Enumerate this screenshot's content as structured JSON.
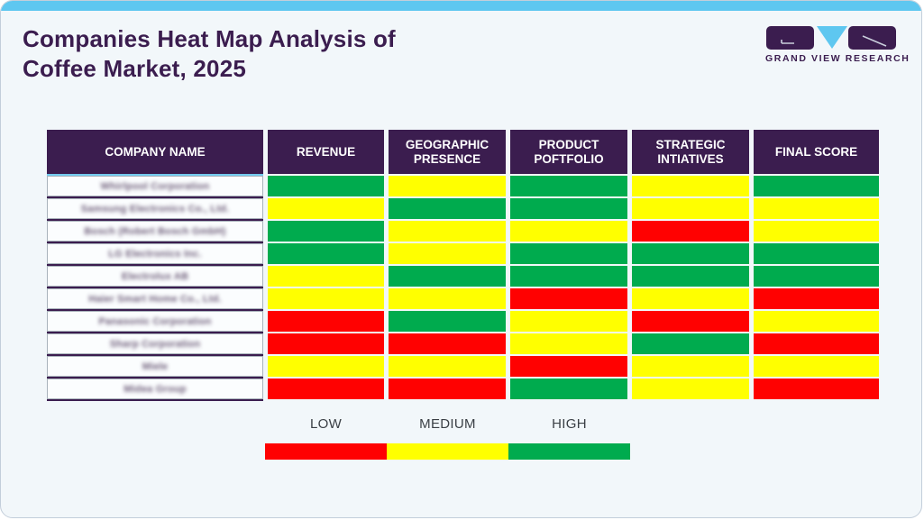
{
  "page": {
    "title_line1": "Companies Heat Map Analysis of",
    "title_line2": "Coffee Market, 2025"
  },
  "logo": {
    "text": "GRAND VIEW RESEARCH",
    "mark": "gvr-monogram-icon"
  },
  "colors": {
    "low": "#FF0101",
    "medium": "#FFFF00",
    "high": "#00AB4E",
    "header_purple": "#3B1D4F",
    "accent_blue": "#5EC7F0",
    "title_purple": "#3B1D4F"
  },
  "chart_data": {
    "type": "heatmap",
    "title": "Companies Heat Map Analysis of Coffee Market, 2025",
    "columns": [
      "COMPANY NAME",
      "REVENUE",
      "GEOGRAPHIC PRESENCE",
      "PRODUCT POFTFOLIO",
      "STRATEGIC INTIATIVES",
      "FINAL SCORE"
    ],
    "scale": {
      "low": "red",
      "medium": "yellow",
      "high": "green"
    },
    "note": "Company names appear blurred/redacted in the source image",
    "rows": [
      {
        "company": "Whirlpool Corporation",
        "ratings": [
          "high",
          "medium",
          "high",
          "medium",
          "high"
        ]
      },
      {
        "company": "Samsung Electronics Co., Ltd.",
        "ratings": [
          "medium",
          "high",
          "high",
          "medium",
          "medium"
        ]
      },
      {
        "company": "Bosch (Robert Bosch GmbH)",
        "ratings": [
          "high",
          "medium",
          "medium",
          "low",
          "medium"
        ]
      },
      {
        "company": "LG Electronics Inc.",
        "ratings": [
          "high",
          "medium",
          "high",
          "high",
          "high"
        ]
      },
      {
        "company": "Electrolux AB",
        "ratings": [
          "medium",
          "high",
          "high",
          "high",
          "high"
        ]
      },
      {
        "company": "Haier Smart Home Co., Ltd.",
        "ratings": [
          "medium",
          "medium",
          "low",
          "medium",
          "low"
        ]
      },
      {
        "company": "Panasonic Corporation",
        "ratings": [
          "low",
          "high",
          "medium",
          "low",
          "medium"
        ]
      },
      {
        "company": "Sharp Corporation",
        "ratings": [
          "low",
          "low",
          "medium",
          "high",
          "low"
        ]
      },
      {
        "company": "Miele",
        "ratings": [
          "medium",
          "medium",
          "low",
          "medium",
          "medium"
        ]
      },
      {
        "company": "Midea Group",
        "ratings": [
          "low",
          "low",
          "high",
          "medium",
          "low"
        ]
      }
    ]
  },
  "legend": {
    "items": [
      {
        "label": "LOW",
        "level": "low"
      },
      {
        "label": "MEDIUM",
        "level": "medium"
      },
      {
        "label": "HIGH",
        "level": "high"
      }
    ]
  }
}
